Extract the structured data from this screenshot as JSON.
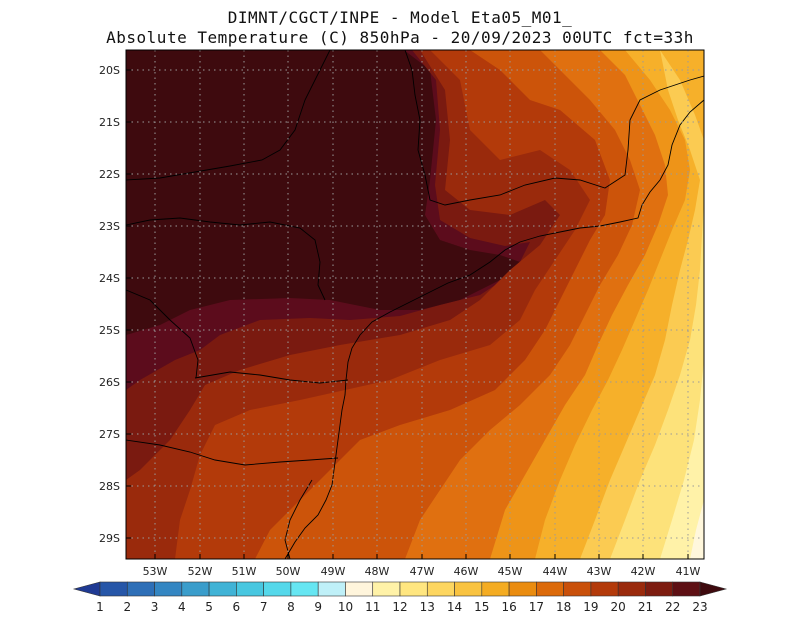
{
  "header": {
    "line1": "DIMNT/CGCT/INPE -  Model Eta05_M01_",
    "line2": "Absolute Temperature (C) 850hPa -  20/09/2023 00UTC fct=33h"
  },
  "map": {
    "lat_labels": [
      "20S",
      "21S",
      "22S",
      "23S",
      "24S",
      "25S",
      "26S",
      "27S",
      "28S",
      "29S"
    ],
    "lon_labels": [
      "53W",
      "52W",
      "51W",
      "50W",
      "49W",
      "48W",
      "47W",
      "46W",
      "45W",
      "44W",
      "43W",
      "42W",
      "41W"
    ],
    "region": {
      "lon_min": -53.6,
      "lon_max": -40.6,
      "lat_min": -29.6,
      "lat_max": -19.7
    },
    "gridlines": true
  },
  "colorbar": {
    "labels": [
      "1",
      "2",
      "3",
      "4",
      "5",
      "6",
      "7",
      "8",
      "9",
      "10",
      "11",
      "12",
      "13",
      "14",
      "15",
      "16",
      "17",
      "18",
      "19",
      "20",
      "21",
      "22",
      "23"
    ],
    "colors": [
      "#1f3a93",
      "#2656a8",
      "#2e6fb7",
      "#3486c2",
      "#3a9dcb",
      "#40b3d6",
      "#48c7e0",
      "#55d8ea",
      "#66e6f2",
      "#bff0f8",
      "#fff5dc",
      "#fff2a8",
      "#ffe680",
      "#fdd660",
      "#f9c340",
      "#f4ac22",
      "#ea8c10",
      "#dc6a0a",
      "#c9500a",
      "#b33a0a",
      "#9a2a0c",
      "#7d1c10",
      "#5e1014",
      "#3e0a0e"
    ]
  }
}
